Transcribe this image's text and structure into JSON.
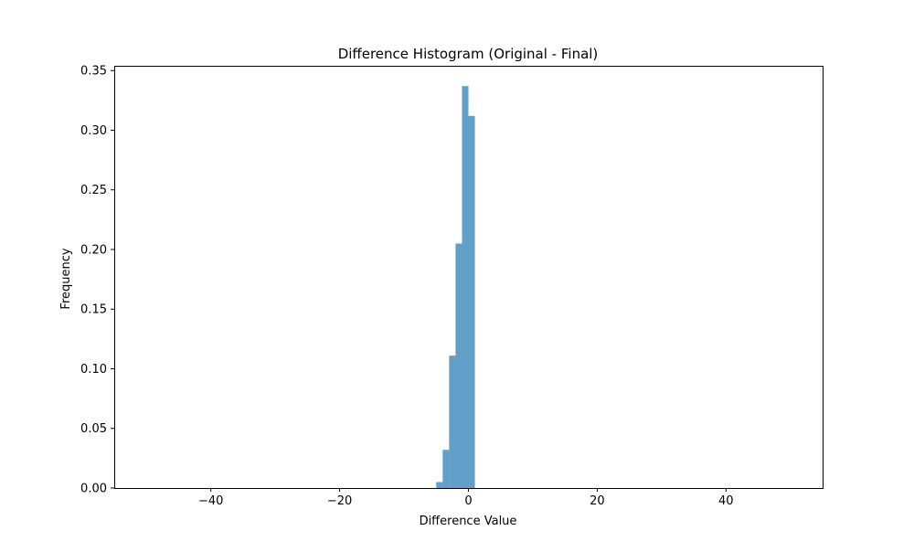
{
  "chart_data": {
    "type": "bar",
    "title": "Difference Histogram (Original - Final)",
    "xlabel": "Difference Value",
    "ylabel": "Frequency",
    "xlim": [
      -55,
      55
    ],
    "ylim": [
      0,
      0.354
    ],
    "xticks": [
      -40,
      -20,
      0,
      20,
      40
    ],
    "xtick_labels": [
      "−40",
      "−20",
      "0",
      "20",
      "40"
    ],
    "yticks": [
      0.0,
      0.05,
      0.1,
      0.15,
      0.2,
      0.25,
      0.3,
      0.35
    ],
    "ytick_labels": [
      "0.00",
      "0.05",
      "0.10",
      "0.15",
      "0.20",
      "0.25",
      "0.30",
      "0.35"
    ],
    "bin_width": 1,
    "bins": [
      {
        "x0": -5,
        "x1": -4,
        "value": 0.005
      },
      {
        "x0": -4,
        "x1": -3,
        "value": 0.032
      },
      {
        "x0": -3,
        "x1": -2,
        "value": 0.111
      },
      {
        "x0": -2,
        "x1": -1,
        "value": 0.205
      },
      {
        "x0": -1,
        "x1": 0,
        "value": 0.337
      },
      {
        "x0": 0,
        "x1": 1,
        "value": 0.312
      }
    ],
    "bar_color": "#1f77b4",
    "bar_alpha": 0.7,
    "grid": false,
    "legend": "none"
  }
}
